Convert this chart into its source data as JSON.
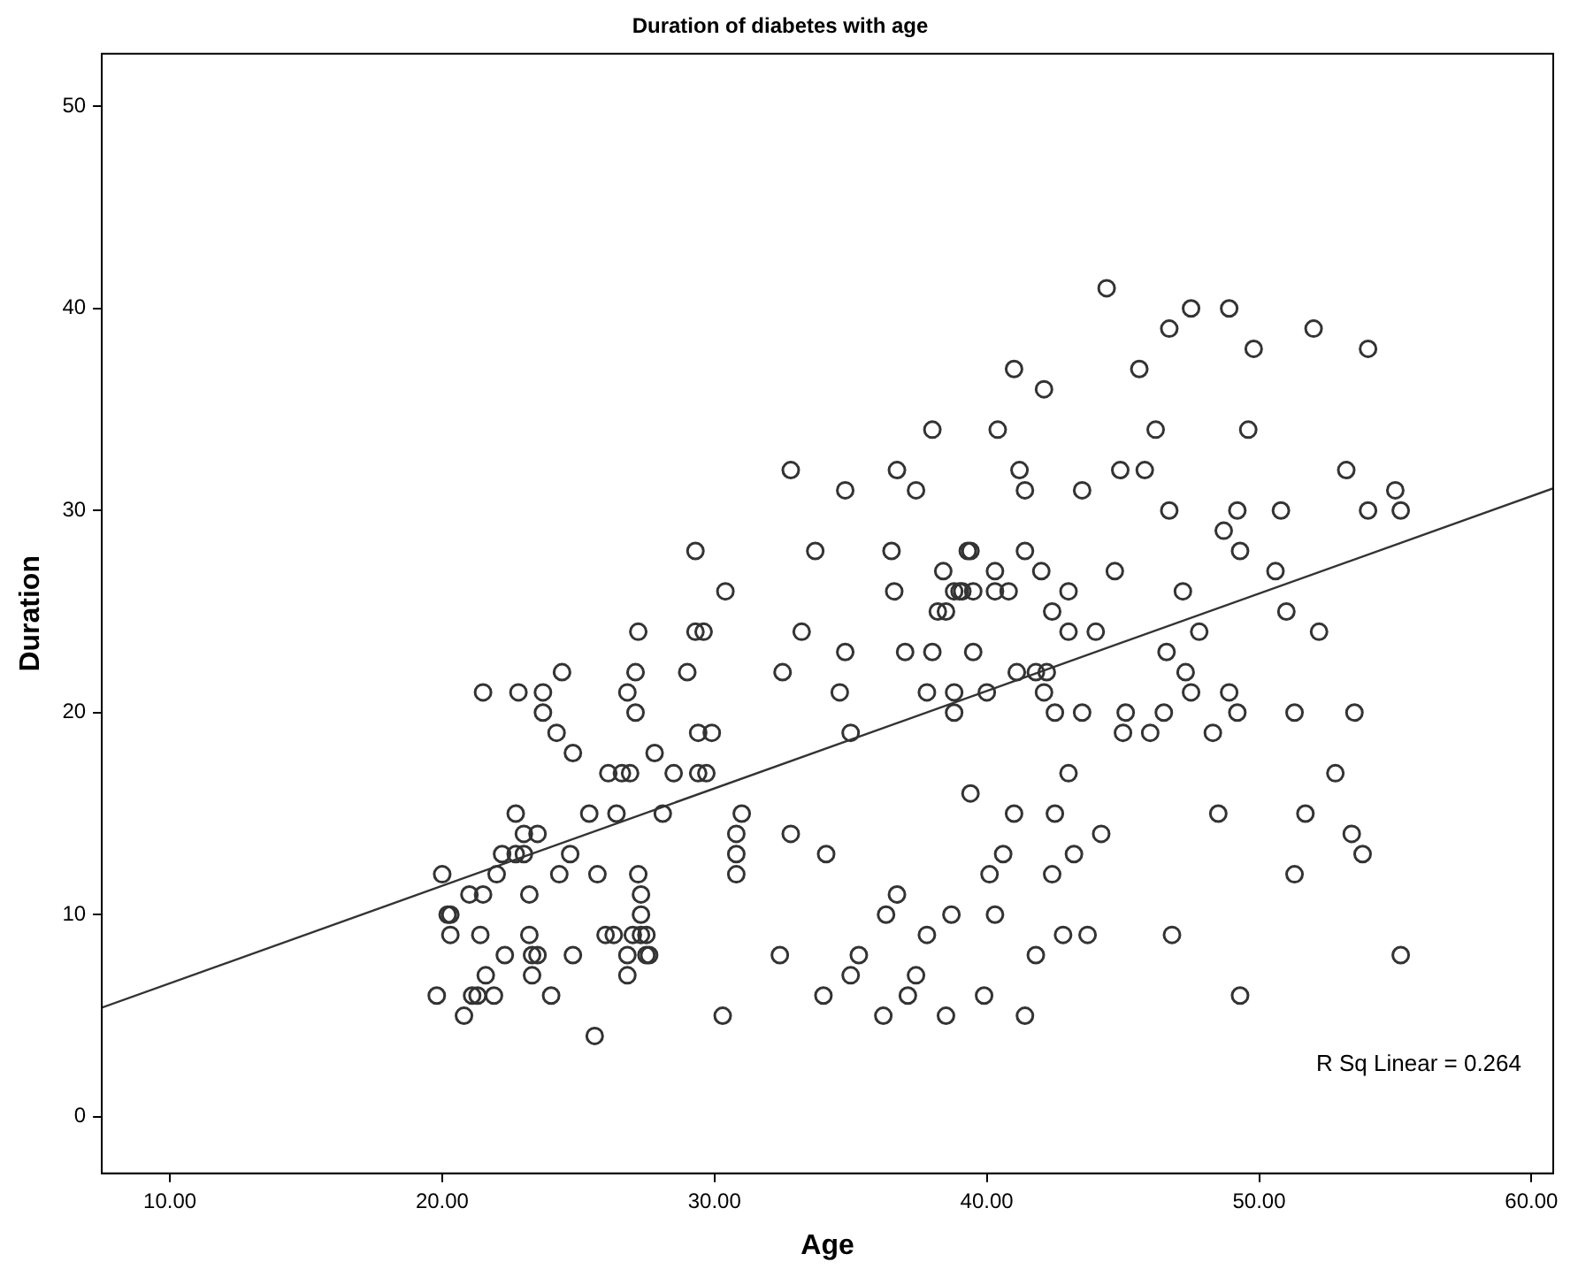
{
  "chart_data": {
    "type": "scatter",
    "title": "Duration of diabetes with age",
    "xlabel": "Age",
    "ylabel": "Duration",
    "xlim": [
      7.5,
      60.8
    ],
    "ylim": [
      -2.8,
      52.6
    ],
    "xticks": [
      {
        "value": 10,
        "label": "10.00"
      },
      {
        "value": 20,
        "label": "20.00"
      },
      {
        "value": 30,
        "label": "30.00"
      },
      {
        "value": 40,
        "label": "40.00"
      },
      {
        "value": 50,
        "label": "50.00"
      },
      {
        "value": 60,
        "label": "60.00"
      }
    ],
    "yticks": [
      0,
      10,
      20,
      30,
      40,
      50
    ],
    "grid": false,
    "legend": false,
    "marker": "circle",
    "annotations": [
      "R Sq Linear = 0.264"
    ],
    "series": [
      {
        "color": "#333333",
        "x": [
          19.8,
          20,
          20.2,
          20.3,
          20.3,
          20.8,
          21,
          21.1,
          21.3,
          21.4,
          21.5,
          21.6,
          21.5,
          21.9,
          22,
          22.2,
          22.3,
          22.7,
          22.8,
          22.7,
          23,
          23,
          23.2,
          23.2,
          23.3,
          23.5,
          23.3,
          23.5,
          23.7,
          23.7,
          24,
          24.2,
          24.3,
          24.4,
          24.8,
          24.8,
          24.7,
          25.4,
          25.6,
          25.7,
          26,
          26.1,
          26.3,
          26.4,
          26.6,
          26.8,
          26.8,
          26.8,
          26.9,
          27,
          27.1,
          27.1,
          27.2,
          27.2,
          27.3,
          27.3,
          27.3,
          27.5,
          27.5,
          27.6,
          27.8,
          28.1,
          28.5,
          29,
          29.3,
          29.3,
          29.4,
          29.4,
          29.6,
          29.7,
          29.9,
          30.3,
          30.4,
          30.8,
          30.8,
          30.8,
          31,
          32.4,
          32.5,
          32.8,
          32.8,
          33.2,
          33.7,
          34,
          34.1,
          34.6,
          34.8,
          34.8,
          35,
          35,
          35.3,
          36.2,
          36.3,
          36.5,
          36.6,
          36.7,
          36.7,
          37,
          37.1,
          37.4,
          37.4,
          37.8,
          37.8,
          38,
          38,
          38.2,
          38.4,
          38.5,
          38.5,
          38.7,
          38.8,
          38.8,
          38.8,
          39,
          39.1,
          39.3,
          39.4,
          39.5,
          39.4,
          39.5,
          39.9,
          40,
          40.1,
          40.3,
          40.4,
          40.3,
          40.3,
          40.6,
          40.8,
          41,
          41.1,
          41,
          41.2,
          41.4,
          41.4,
          41.4,
          41.8,
          41.8,
          42,
          42.1,
          42.1,
          42.2,
          42.4,
          42.4,
          42.5,
          42.5,
          42.8,
          43,
          43,
          43,
          43.2,
          43.5,
          43.5,
          43.7,
          44,
          44.2,
          44.4,
          44.7,
          44.9,
          45,
          45.1,
          45.6,
          45.8,
          46,
          46.2,
          46.5,
          46.6,
          46.7,
          46.7,
          46.8,
          47.2,
          47.3,
          47.5,
          47.5,
          47.8,
          48.3,
          48.5,
          48.7,
          48.9,
          48.9,
          49.2,
          49.2,
          49.3,
          49.3,
          49.6,
          49.8,
          50.6,
          50.8,
          51,
          51.3,
          51.3,
          51.7,
          52,
          52.2,
          52.8,
          53.2,
          53.4,
          53.5,
          53.8,
          54,
          54,
          55,
          55.2,
          55.2
        ],
        "values": [
          6,
          12,
          10,
          9,
          10,
          5,
          11,
          6,
          6,
          9,
          11,
          7,
          21,
          6,
          12,
          13,
          8,
          13,
          21,
          15,
          13,
          14,
          11,
          9,
          8,
          8,
          7,
          14,
          21,
          20,
          6,
          19,
          12,
          22,
          18,
          8,
          13,
          15,
          4,
          12,
          9,
          17,
          9,
          15,
          17,
          7,
          8,
          21,
          17,
          9,
          22,
          20,
          24,
          12,
          11,
          10,
          9,
          8,
          9,
          8,
          18,
          15,
          17,
          22,
          28,
          24,
          17,
          19,
          24,
          17,
          19,
          5,
          26,
          12,
          13,
          14,
          15,
          8,
          22,
          32,
          14,
          24,
          28,
          6,
          13,
          21,
          23,
          31,
          7,
          19,
          8,
          5,
          10,
          28,
          26,
          11,
          32,
          23,
          6,
          7,
          31,
          9,
          21,
          23,
          34,
          25,
          27,
          25,
          5,
          10,
          20,
          21,
          26,
          26,
          26,
          28,
          28,
          23,
          16,
          26,
          6,
          21,
          12,
          10,
          34,
          27,
          26,
          13,
          26,
          37,
          22,
          15,
          32,
          31,
          28,
          5,
          8,
          22,
          27,
          36,
          21,
          22,
          25,
          12,
          20,
          15,
          9,
          26,
          24,
          17,
          13,
          20,
          31,
          9,
          24,
          14,
          41,
          27,
          32,
          19,
          20,
          37,
          32,
          19,
          34,
          20,
          23,
          30,
          39,
          9,
          26,
          22,
          40,
          21,
          24,
          19,
          15,
          29,
          40,
          21,
          20,
          30,
          6,
          28,
          34,
          38,
          27,
          30,
          25,
          12,
          20,
          15,
          39,
          24,
          17,
          32,
          14,
          20,
          13,
          38,
          30,
          31,
          30,
          8
        ]
      },
      {
        "type": "line",
        "marker": "none",
        "color": "#333333",
        "x": [
          7.5,
          60.8
        ],
        "values": [
          5.4,
          31.1
        ]
      }
    ]
  }
}
